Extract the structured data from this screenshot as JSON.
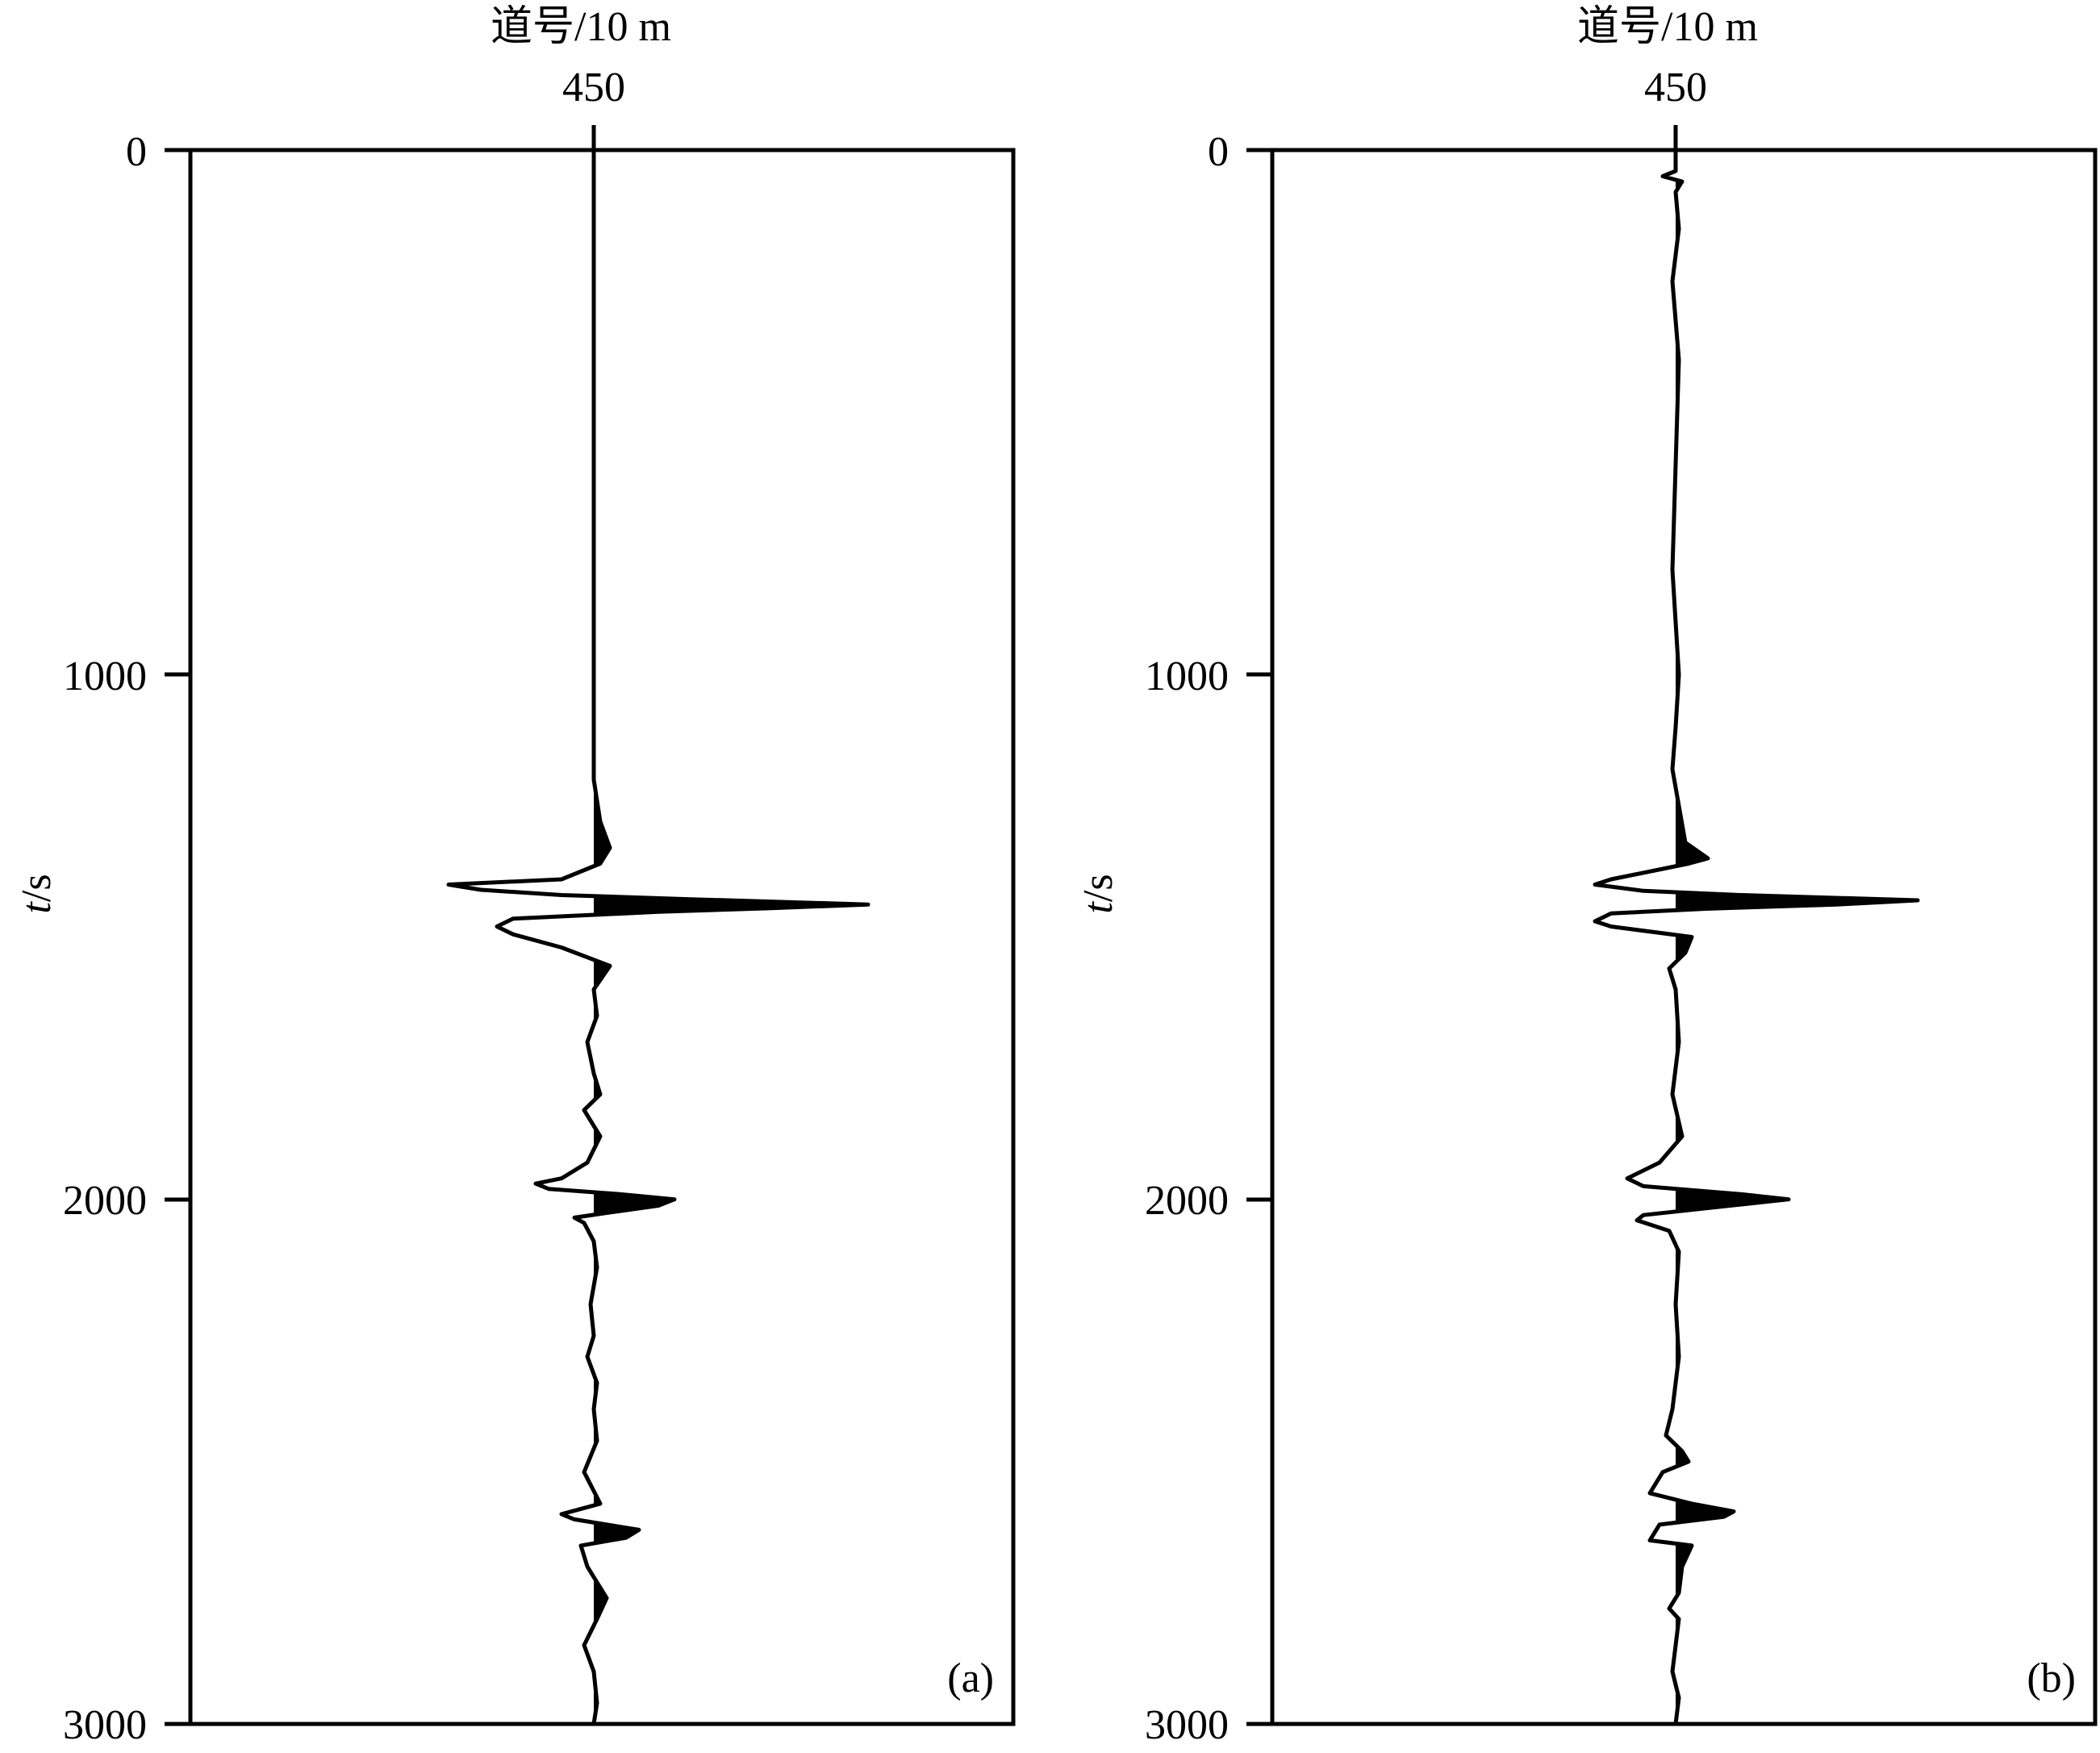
{
  "chart_data": [
    {
      "type": "line",
      "panel_label": "(a)",
      "xlabel": "道号/10 m",
      "x_tick_labels": [
        "450"
      ],
      "ylabel": "t/s",
      "y_ticks": [
        0,
        1000,
        2000,
        3000
      ],
      "ylim": [
        0,
        3000
      ],
      "y_inverted": true,
      "grid": false,
      "trace_center": 450,
      "fill": "positive",
      "series": [
        {
          "t": [
            0,
            1070,
            1200,
            1280,
            1330,
            1360,
            1390,
            1400,
            1410,
            1420,
            1428,
            1438,
            1445,
            1452,
            1465,
            1480,
            1495,
            1520,
            1555,
            1600,
            1650,
            1700,
            1760,
            1800,
            1830,
            1880,
            1930,
            1960,
            1970,
            1980,
            1990,
            2000,
            2012,
            2025,
            2035,
            2045,
            2080,
            2130,
            2200,
            2260,
            2300,
            2350,
            2400,
            2460,
            2520,
            2580,
            2600,
            2610,
            2630,
            2645,
            2660,
            2700,
            2730,
            2760,
            2800,
            2850,
            2900,
            2960,
            3000
          ],
          "amplitude": [
            0,
            0,
            0,
            0.02,
            0.05,
            0.02,
            -0.1,
            -0.45,
            -0.35,
            -0.1,
            0.3,
            0.85,
            0.55,
            0.2,
            -0.25,
            -0.3,
            -0.25,
            -0.1,
            0.05,
            0,
            0.01,
            -0.02,
            0,
            0.02,
            -0.03,
            0.02,
            -0.02,
            -0.1,
            -0.18,
            -0.14,
            0.08,
            0.25,
            0.2,
            0.05,
            -0.06,
            -0.03,
            0,
            0.01,
            -0.01,
            0,
            -0.02,
            0.01,
            0,
            0.01,
            -0.03,
            0.02,
            -0.1,
            -0.06,
            0.14,
            0.1,
            -0.04,
            -0.02,
            0.01,
            0.04,
            0.01,
            -0.03,
            0,
            0.01,
            0
          ]
        }
      ]
    },
    {
      "type": "line",
      "panel_label": "(b)",
      "xlabel": "道号/10 m",
      "x_tick_labels": [
        "450"
      ],
      "ylabel": "t/s",
      "y_ticks": [
        0,
        1000,
        2000,
        3000
      ],
      "ylim": [
        0,
        3000
      ],
      "y_inverted": true,
      "grid": false,
      "trace_center": 450,
      "fill": "positive",
      "series": [
        {
          "t": [
            0,
            40,
            50,
            60,
            80,
            150,
            250,
            400,
            600,
            800,
            1000,
            1100,
            1180,
            1250,
            1320,
            1350,
            1360,
            1390,
            1400,
            1412,
            1420,
            1430,
            1438,
            1446,
            1455,
            1470,
            1480,
            1500,
            1530,
            1560,
            1600,
            1700,
            1800,
            1880,
            1930,
            1960,
            1975,
            1990,
            2000,
            2010,
            2020,
            2030,
            2040,
            2060,
            2100,
            2200,
            2300,
            2400,
            2450,
            2480,
            2500,
            2520,
            2560,
            2580,
            2595,
            2605,
            2620,
            2640,
            2650,
            2660,
            2700,
            2750,
            2780,
            2800,
            2850,
            2900,
            2950,
            3000
          ],
          "amplitude": [
            0,
            0,
            -0.04,
            0.02,
            0,
            0.01,
            -0.01,
            0.01,
            0,
            -0.01,
            0.01,
            0,
            -0.01,
            0.01,
            0.03,
            0.1,
            0.04,
            -0.2,
            -0.25,
            -0.1,
            0.2,
            0.75,
            0.5,
            0.1,
            -0.2,
            -0.25,
            -0.2,
            0.05,
            0.03,
            -0.02,
            0,
            0.01,
            -0.01,
            0.02,
            -0.05,
            -0.15,
            -0.1,
            0.2,
            0.35,
            0.2,
            0.05,
            -0.1,
            -0.12,
            -0.02,
            0.01,
            0,
            0.01,
            -0.01,
            -0.03,
            0.02,
            0.04,
            -0.04,
            -0.08,
            0.05,
            0.18,
            0.15,
            -0.05,
            -0.07,
            -0.08,
            0.05,
            0.02,
            0.01,
            -0.02,
            0.01,
            0,
            -0.01,
            0.01,
            0
          ]
        }
      ]
    }
  ]
}
